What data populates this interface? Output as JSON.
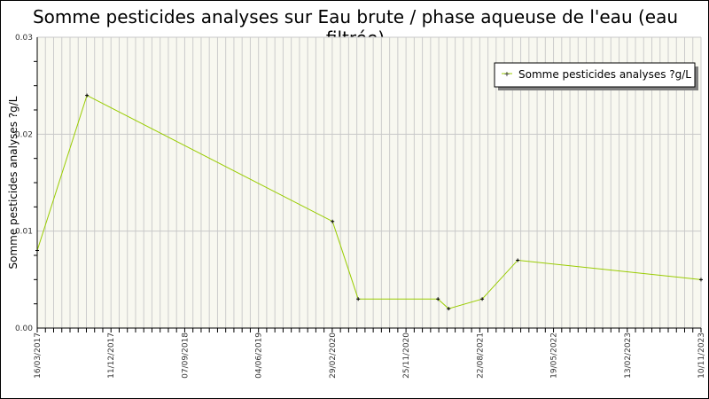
{
  "chart_data": {
    "type": "line",
    "title": "Somme pesticides analyses sur Eau brute / phase aqueuse de l'eau (eau filtrée)",
    "xlabel": "",
    "ylabel": "Somme pesticides analyses ?g/L",
    "ylim": [
      0,
      0.03
    ],
    "xlim": [
      "2017-03-16",
      "2023-11-10"
    ],
    "grid": true,
    "legend_position": "top-right",
    "line_color": "#99cc00",
    "plot_background": "#f8f8f0",
    "y_ticks": [
      "0.00",
      "0.01",
      "0.02",
      "0.03"
    ],
    "y_tick_values": [
      0,
      0.01,
      0.02,
      0.03
    ],
    "x_ticks": [
      "16/03/2017",
      "11/12/2017",
      "07/09/2018",
      "04/06/2019",
      "29/02/2020",
      "25/11/2020",
      "22/08/2021",
      "19/05/2022",
      "13/02/2023",
      "10/11/2023"
    ],
    "series": [
      {
        "name": "Somme pesticides analyses ?g/L",
        "x": [
          "2017-03-16",
          "2017-09-14",
          "2020-03-01",
          "2020-06-03",
          "2021-03-22",
          "2021-04-30",
          "2021-08-31",
          "2022-01-08",
          "2023-11-10"
        ],
        "y": [
          0.008,
          0.024,
          0.011,
          0.003,
          0.003,
          0.002,
          0.003,
          0.007,
          0.005
        ]
      }
    ]
  }
}
